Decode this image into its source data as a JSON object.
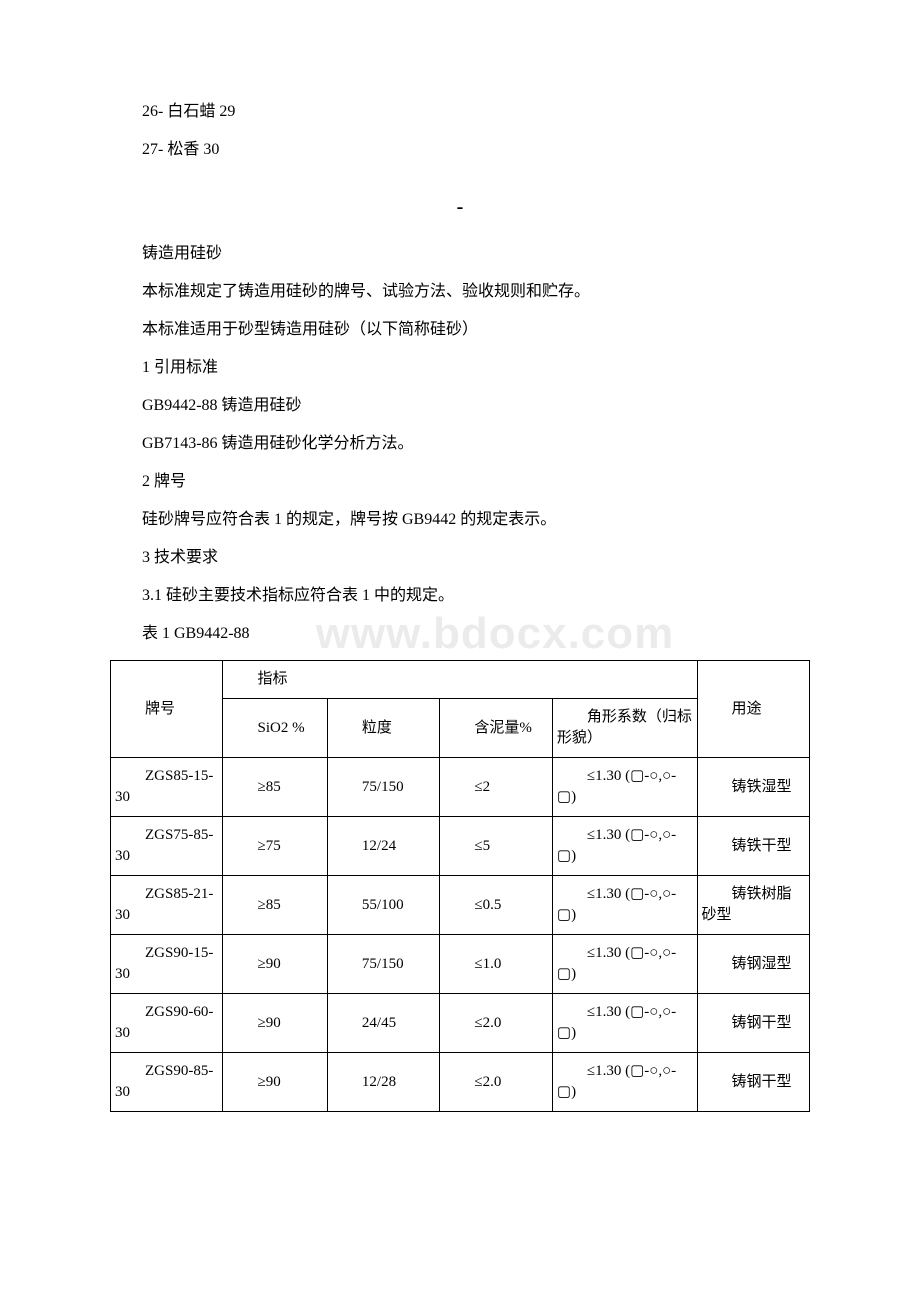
{
  "toc": [
    "26- 白石蜡  29",
    "27- 松香  30"
  ],
  "dash": "-",
  "title": "铸造用硅砂",
  "intro1": "本标准规定了铸造用硅砂的牌号、试验方法、验收规则和贮存。",
  "intro2": "本标准适用于砂型铸造用硅砂（以下简称硅砂）",
  "sec1": "1 引用标准",
  "ref1": " GB9442-88 铸造用硅砂",
  "ref2": " GB7143-86 铸造用硅砂化学分析方法。",
  "sec2": "2 牌号",
  "sec2_body": " 硅砂牌号应符合表 1 的规定，牌号按 GB9442 的规定表示。",
  "sec3": "3 技术要求",
  "sec3_1": "3.1 硅砂主要技术指标应符合表 1 中的规定。",
  "table_caption": "表 1 GB9442-88",
  "watermark": "www.bdocx.com",
  "headers": {
    "grade": "牌号",
    "indicator": "指标",
    "sio2": "SiO2 %",
    "grain": "粒度",
    "mud": "含泥量%",
    "angle": "角形系数（归标形貌）",
    "use": "用途"
  },
  "rows": [
    {
      "grade": "ZGS85-15-30",
      "sio2": "≥85",
      "grain": "75/150",
      "mud": "≤2",
      "angle": "≤1.30 (▢-○,○-▢)",
      "use": "铸铁湿型"
    },
    {
      "grade": "ZGS75-85-30",
      "sio2": "≥75",
      "grain": "12/24",
      "mud": "≤5",
      "angle": "≤1.30 (▢-○,○-▢)",
      "use": "铸铁干型"
    },
    {
      "grade": "ZGS85-21-30",
      "sio2": "≥85",
      "grain": "55/100",
      "mud": "≤0.5",
      "angle": "≤1.30 (▢-○,○-▢)",
      "use": "铸铁树脂砂型"
    },
    {
      "grade": "ZGS90-15-30",
      "sio2": "≥90",
      "grain": "75/150",
      "mud": "≤1.0",
      "angle": "≤1.30 (▢-○,○-▢)",
      "use": "铸钢湿型"
    },
    {
      "grade": "ZGS90-60-30",
      "sio2": "≥90",
      "grain": "24/45",
      "mud": "≤2.0",
      "angle": "≤1.30 (▢-○,○-▢)",
      "use": "铸钢干型"
    },
    {
      "grade": "ZGS90-85-30",
      "sio2": "≥90",
      "grain": "12/28",
      "mud": "≤2.0",
      "angle": "≤1.30 (▢-○,○-▢)",
      "use": "铸钢干型"
    }
  ]
}
